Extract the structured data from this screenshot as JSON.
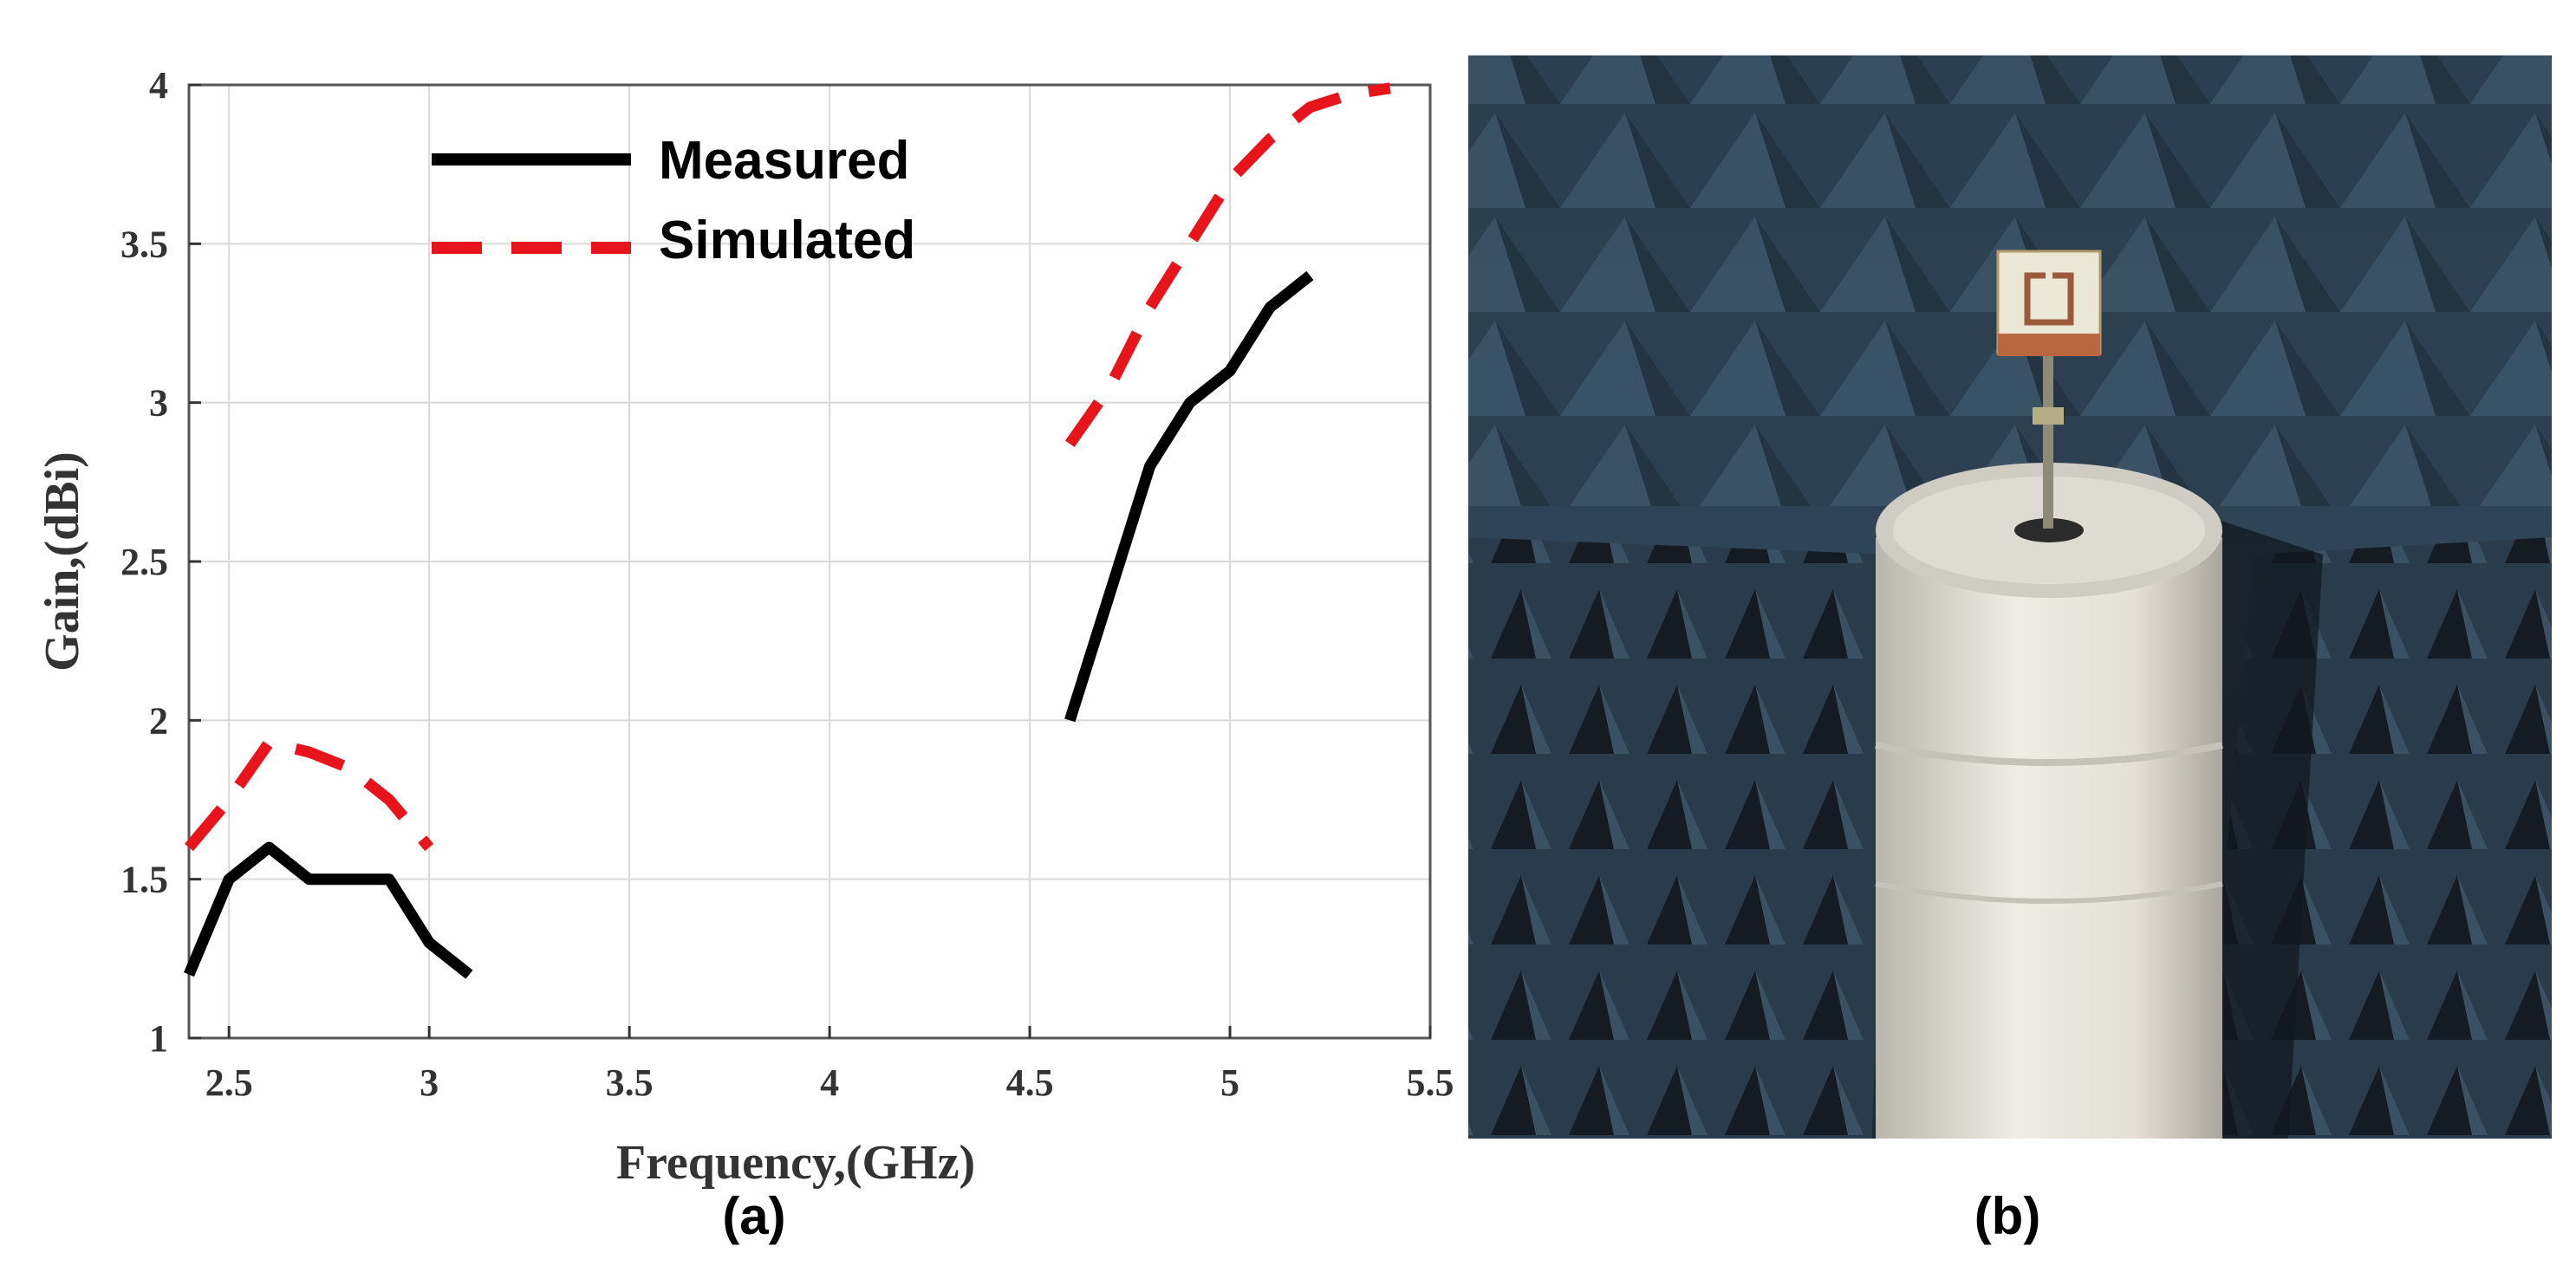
{
  "panels": {
    "a": "(a)",
    "b": "(b)"
  },
  "colors": {
    "measured": "#000000",
    "simulated": "#e8141b",
    "grid": "#d9d9d9",
    "axis": "#333333"
  },
  "chart_data": {
    "type": "line",
    "xlabel": "Frequency,(GHz)",
    "ylabel": "Gain,(dBi)",
    "xlim": [
      2.4,
      5.5
    ],
    "ylim": [
      1,
      4
    ],
    "xticks": [
      "2.5",
      "3",
      "3.5",
      "4",
      "4.5",
      "5",
      "5.5"
    ],
    "yticks": [
      "1",
      "1.5",
      "2",
      "2.5",
      "3",
      "3.5",
      "4"
    ],
    "grid": true,
    "legend_position": "top-left",
    "series": [
      {
        "name": "Measured",
        "style": "solid",
        "segments": [
          {
            "x": [
              2.4,
              2.5,
              2.6,
              2.7,
              2.8,
              2.9,
              3.0,
              3.1
            ],
            "y": [
              1.2,
              1.5,
              1.6,
              1.5,
              1.5,
              1.5,
              1.3,
              1.2
            ]
          },
          {
            "x": [
              4.6,
              4.7,
              4.8,
              4.9,
              5.0,
              5.1,
              5.2
            ],
            "y": [
              2.0,
              2.4,
              2.8,
              3.0,
              3.1,
              3.3,
              3.4
            ]
          }
        ]
      },
      {
        "name": "Simulated",
        "style": "dashed",
        "segments": [
          {
            "x": [
              2.4,
              2.5,
              2.6,
              2.7,
              2.8,
              2.9,
              3.0
            ],
            "y": [
              1.6,
              1.75,
              1.93,
              1.9,
              1.85,
              1.75,
              1.6
            ]
          },
          {
            "x": [
              4.6,
              4.7,
              4.8,
              4.9,
              5.0,
              5.1,
              5.2,
              5.3,
              5.4
            ],
            "y": [
              2.87,
              3.05,
              3.3,
              3.5,
              3.7,
              3.83,
              3.93,
              3.97,
              3.99
            ]
          }
        ]
      }
    ]
  }
}
